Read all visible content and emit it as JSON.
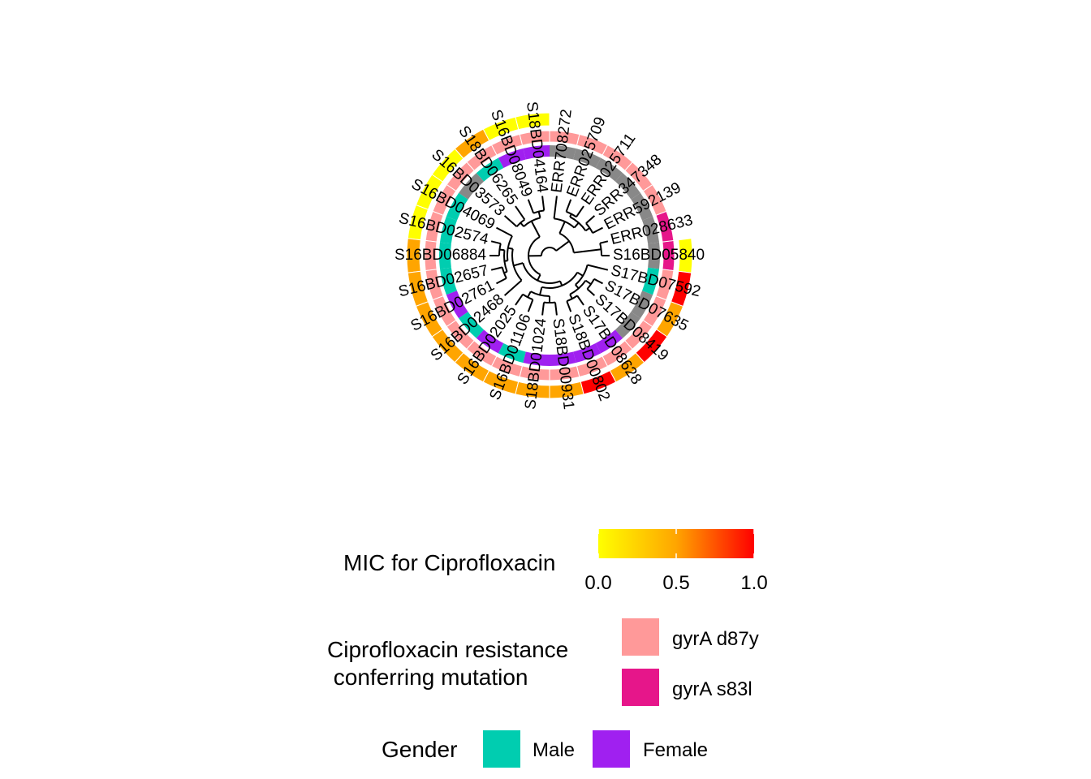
{
  "chart_data": {
    "type": "circular-phylogenetic-tree",
    "tips": [
      {
        "label": "S16BD05840",
        "gender": "unknown",
        "mutation": "gyrA s83l",
        "mic": 0.0
      },
      {
        "label": "ERR028633",
        "gender": "unknown",
        "mutation": "gyrA s83l",
        "mic": null
      },
      {
        "label": "ERR592139",
        "gender": "unknown",
        "mutation": "gyrA d87y",
        "mic": null
      },
      {
        "label": "SRR347348",
        "gender": "unknown",
        "mutation": "gyrA d87y",
        "mic": null
      },
      {
        "label": "ERR025711",
        "gender": "unknown",
        "mutation": "gyrA d87y",
        "mic": null
      },
      {
        "label": "ERR025709",
        "gender": "unknown",
        "mutation": "gyrA d87y",
        "mic": null
      },
      {
        "label": "ERR708272",
        "gender": "unknown",
        "mutation": "gyrA d87y",
        "mic": null
      },
      {
        "label": "S18BD04164",
        "gender": "female",
        "mutation": "gyrA d87y",
        "mic": 0.0
      },
      {
        "label": "S16BD08049",
        "gender": "female",
        "mutation": "gyrA d87y",
        "mic": 0.0
      },
      {
        "label": "S18BD06265",
        "gender": "male",
        "mutation": "gyrA d87y",
        "mic": 0.5
      },
      {
        "label": "S16BD03573",
        "gender": "unknown",
        "mutation": "gyrA d87y",
        "mic": 0.0
      },
      {
        "label": "S16BD04069",
        "gender": "male",
        "mutation": "gyrA d87y",
        "mic": 0.0
      },
      {
        "label": "S16BD02574",
        "gender": "male",
        "mutation": "gyrA d87y",
        "mic": 0.0
      },
      {
        "label": "S16BD06884",
        "gender": "male",
        "mutation": "gyrA d87y",
        "mic": 0.5
      },
      {
        "label": "S16BD02657",
        "gender": "male",
        "mutation": "gyrA d87y",
        "mic": 0.5
      },
      {
        "label": "S16BD02761",
        "gender": "female",
        "mutation": "gyrA d87y",
        "mic": 0.5
      },
      {
        "label": "S16BD02468",
        "gender": "male",
        "mutation": "gyrA d87y",
        "mic": 0.5
      },
      {
        "label": "S16BD02025",
        "gender": "female",
        "mutation": "gyrA d87y",
        "mic": 0.5
      },
      {
        "label": "S16BD01106",
        "gender": "male",
        "mutation": "gyrA d87y",
        "mic": 0.5
      },
      {
        "label": "S18BD01024",
        "gender": "female",
        "mutation": "gyrA d87y",
        "mic": 0.5
      },
      {
        "label": "S18BD00931",
        "gender": "female",
        "mutation": "gyrA d87y",
        "mic": 0.5
      },
      {
        "label": "S18BD00802",
        "gender": "female",
        "mutation": "gyrA d87y",
        "mic": 1.0
      },
      {
        "label": "S17BD08628",
        "gender": "female",
        "mutation": "gyrA d87y",
        "mic": 0.5
      },
      {
        "label": "S17BD08419",
        "gender": "unknown",
        "mutation": "gyrA d87y",
        "mic": 1.0
      },
      {
        "label": "S17BD07635",
        "gender": "unknown",
        "mutation": "gyrA d87y",
        "mic": 0.5
      },
      {
        "label": "S17BD07592",
        "gender": "male",
        "mutation": "gyrA d87y",
        "mic": 1.0
      }
    ],
    "legends": {
      "mic": {
        "title": "MIC for Ciprofloxacin",
        "ticks": [
          "0.0",
          "0.5",
          "1.0"
        ],
        "low_color": "#ffff00",
        "mid_color": "#ffa500",
        "high_color": "#ff0000"
      },
      "mutation": {
        "title_line1": "Ciprofloxacin resistance",
        "title_line2": " conferring mutation",
        "entries": [
          {
            "label": "gyrA d87y",
            "color": "#ff9999"
          },
          {
            "label": "gyrA s83l",
            "color": "#e6168a"
          }
        ]
      },
      "gender": {
        "title": "Gender",
        "entries": [
          {
            "label": "Male",
            "color": "#00cdb0"
          },
          {
            "label": "Female",
            "color": "#a020f0"
          }
        ]
      }
    },
    "colors": {
      "unknown": "#888888",
      "male": "#00cdb0",
      "female": "#a020f0",
      "d87y": "#ff9999",
      "s83l": "#e6168a"
    }
  }
}
